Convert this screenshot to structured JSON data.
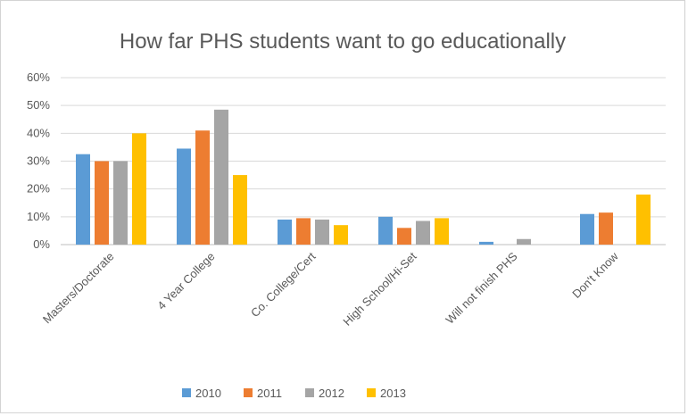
{
  "chart_data": {
    "type": "bar",
    "title": "How far PHS students want to go educationally",
    "xlabel": "",
    "ylabel": "",
    "categories": [
      "Masters/Doctorate",
      "4 Year College",
      "Co. College/Cert",
      "High School/Hi-Set",
      "Will not finish PHS",
      "Don't Know"
    ],
    "y_ticks": [
      "0%",
      "10%",
      "20%",
      "30%",
      "40%",
      "50%",
      "60%"
    ],
    "ylim": [
      0,
      60
    ],
    "grid": true,
    "legend_position": "bottom",
    "series": [
      {
        "name": "2010",
        "color": "#5b9bd5",
        "values": [
          32.5,
          34.5,
          9,
          10,
          1,
          11
        ]
      },
      {
        "name": "2011",
        "color": "#ed7d31",
        "values": [
          30,
          41,
          9.5,
          6,
          0,
          11.5
        ]
      },
      {
        "name": "2012",
        "color": "#a5a5a5",
        "values": [
          30,
          48.5,
          9,
          8.5,
          2,
          0
        ]
      },
      {
        "name": "2013",
        "color": "#ffc000",
        "values": [
          40,
          25,
          7,
          9.5,
          0,
          18
        ]
      }
    ]
  }
}
